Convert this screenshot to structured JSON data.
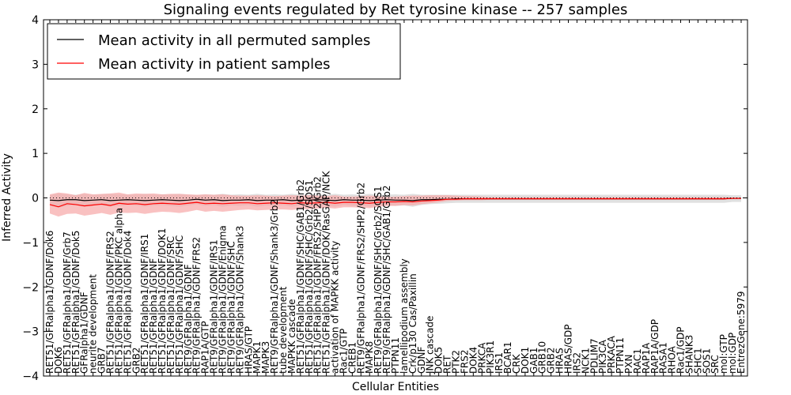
{
  "chart_data": {
    "type": "line",
    "title": "Signaling events regulated by Ret tyrosine kinase -- 257 samples",
    "xlabel": "Cellular Entities",
    "ylabel": "Inferred Activity",
    "ylim": [
      -4,
      4
    ],
    "yticks": [
      "−4",
      "−3",
      "−2",
      "−1",
      "0",
      "1",
      "2",
      "3",
      "4"
    ],
    "grid": false,
    "legend_position": "top-left",
    "categories": [
      "RET51/GFRalpha1/GDNF/Dok6",
      "DOK6",
      "RET51/GFRalpha1/GDNF/Grb7",
      "RET51/GFRalpha1/GDNF/Dok5",
      "GFRalpha1/GDNF",
      "neurite development",
      "GRB7",
      "RET51/GFRalpha1/GDNF/FRS2",
      "RET51/GFRalpha1/GDNF/PKC alpha",
      "RET51/GFRalpha1/GDNF/Dok4",
      "GRB2",
      "RET51/GFRalpha1/GDNF/IRS1",
      "RET51/GFRalpha1/GDNF",
      "RET51/GFRalpha1/GDNF/DOK1",
      "RET51/GFRalpha1/GDNF/SRC",
      "RET51/GFRalpha1/GDNF/SHC",
      "RET9/GFRalpha1/GDNF",
      "RET9/GFRalpha1/GDNF/FRS2",
      "RAP1A/GTP",
      "RET9/GFRalpha1/GDNF/IRS1",
      "RET9/GFRalpha1/GDNF/Enigma",
      "RET9/GFRalpha1/GDNF/SHC",
      "RET9/GFRalpha1/GDNF/Shank3",
      "HRAS/GTP",
      "MAPK1",
      "MAPK3",
      "RET9/GFRalpha1/GDNF/Shank3/Grb2",
      "tube development",
      "MAPKK cascade",
      "RET51/GFRalpha1/GDNF/SHC/GAB1/Grb2",
      "RET51/GFRalpha1/GDNF/SHC/Grb2/SOS1",
      "RET51/GFRalpha1/GDNF/FRS2/SHP2/Grb2",
      "RET51/GFRalpha1/GDNF/DOK/RasGAP/NCK",
      "activation of MAPKK activity",
      "Rac1/GTP",
      "CREB1",
      "RET9/GFRalpha1/GDNF/FRS2/SHP2/Grb2",
      "MAPK8",
      "RET9/GFRalpha1/GDNF/SHC/Grb2/SOS1",
      "RET9/GFRalpha1/GDNF/SHC/GAB1/Grb2",
      "PTPN11",
      "lamellipodium assembly",
      "Crk/p130 Cas/Paxillin",
      "GDNF",
      "JNK cascade",
      "DOK5",
      "RET",
      "PTK2",
      "FRS2",
      "DOK4",
      "PRKCA",
      "PIK3R1",
      "IRS1",
      "BCAR1",
      "CRK",
      "DOK1",
      "GAB1",
      "GRB10",
      "GRB2",
      "HRAS",
      "HRAS/GDP",
      "IRS2",
      "NCK1",
      "PDLIM7",
      "PIK3CA",
      "PRKACA",
      "PTPN11",
      "PXN",
      "RAC1",
      "RAP1A",
      "RAP1A/GDP",
      "RASA1",
      "RHOA",
      "Rac1/GDP",
      "SHANK3",
      "SHC1",
      "SOS1",
      "SRC",
      "mol:GTP",
      "mol:GDP",
      "EntrezGene:5979"
    ],
    "series": [
      {
        "name": "Mean activity in all permuted samples",
        "color": "#000000",
        "band_color": "#cccccc",
        "values": [
          -0.05,
          -0.06,
          -0.04,
          -0.04,
          -0.06,
          -0.05,
          -0.04,
          -0.06,
          -0.05,
          -0.04,
          -0.05,
          -0.06,
          -0.05,
          -0.04,
          -0.05,
          -0.06,
          -0.05,
          -0.03,
          -0.05,
          -0.04,
          -0.06,
          -0.05,
          -0.05,
          -0.04,
          -0.06,
          -0.05,
          -0.05,
          -0.04,
          -0.06,
          -0.05,
          -0.05,
          -0.04,
          -0.05,
          -0.06,
          -0.04,
          -0.05,
          -0.05,
          -0.06,
          -0.05,
          -0.04,
          -0.05,
          -0.05,
          -0.06,
          -0.04,
          -0.04,
          -0.03,
          -0.03,
          -0.02,
          -0.02,
          -0.02,
          -0.02,
          -0.02,
          -0.02,
          -0.02,
          -0.02,
          -0.02,
          -0.02,
          -0.02,
          -0.02,
          -0.02,
          -0.02,
          -0.02,
          -0.02,
          -0.02,
          -0.02,
          -0.02,
          -0.02,
          -0.02,
          -0.02,
          -0.02,
          -0.02,
          -0.02,
          -0.02,
          -0.02,
          -0.02,
          -0.02,
          -0.02,
          -0.02,
          -0.02,
          -0.01,
          -0.01
        ],
        "lower": [
          -0.17,
          -0.22,
          -0.18,
          -0.16,
          -0.2,
          -0.17,
          -0.16,
          -0.2,
          -0.18,
          -0.16,
          -0.17,
          -0.2,
          -0.17,
          -0.16,
          -0.18,
          -0.2,
          -0.17,
          -0.14,
          -0.18,
          -0.16,
          -0.2,
          -0.17,
          -0.18,
          -0.16,
          -0.2,
          -0.17,
          -0.18,
          -0.16,
          -0.2,
          -0.17,
          -0.18,
          -0.16,
          -0.17,
          -0.2,
          -0.16,
          -0.18,
          -0.17,
          -0.2,
          -0.17,
          -0.16,
          -0.18,
          -0.17,
          -0.2,
          -0.16,
          -0.14,
          -0.13,
          -0.12,
          -0.11,
          -0.11,
          -0.11,
          -0.11,
          -0.11,
          -0.11,
          -0.11,
          -0.11,
          -0.11,
          -0.11,
          -0.11,
          -0.11,
          -0.11,
          -0.11,
          -0.11,
          -0.11,
          -0.11,
          -0.11,
          -0.11,
          -0.11,
          -0.11,
          -0.11,
          -0.11,
          -0.11,
          -0.11,
          -0.11,
          -0.11,
          -0.11,
          -0.11,
          -0.11,
          -0.11,
          -0.11,
          -0.09,
          -0.09
        ],
        "upper": [
          0.06,
          0.1,
          0.08,
          0.07,
          0.09,
          0.07,
          0.08,
          0.09,
          0.08,
          0.07,
          0.07,
          0.09,
          0.07,
          0.08,
          0.08,
          0.09,
          0.07,
          0.06,
          0.08,
          0.07,
          0.09,
          0.07,
          0.08,
          0.07,
          0.09,
          0.07,
          0.08,
          0.07,
          0.09,
          0.07,
          0.08,
          0.07,
          0.07,
          0.09,
          0.07,
          0.08,
          0.07,
          0.09,
          0.07,
          0.07,
          0.08,
          0.07,
          0.09,
          0.07,
          0.07,
          0.07,
          0.07,
          0.07,
          0.07,
          0.07,
          0.07,
          0.07,
          0.07,
          0.07,
          0.07,
          0.07,
          0.07,
          0.07,
          0.07,
          0.07,
          0.07,
          0.07,
          0.07,
          0.07,
          0.07,
          0.07,
          0.07,
          0.07,
          0.07,
          0.07,
          0.07,
          0.07,
          0.07,
          0.07,
          0.07,
          0.07,
          0.07,
          0.07,
          0.07,
          0.06,
          0.06
        ]
      },
      {
        "name": "Mean activity in patient samples",
        "color": "#ff0000",
        "band_color": "#f7a6a6",
        "values": [
          -0.15,
          -0.2,
          -0.13,
          -0.15,
          -0.18,
          -0.16,
          -0.14,
          -0.17,
          -0.12,
          -0.14,
          -0.13,
          -0.15,
          -0.13,
          -0.12,
          -0.13,
          -0.14,
          -0.12,
          -0.1,
          -0.13,
          -0.12,
          -0.13,
          -0.12,
          -0.11,
          -0.11,
          -0.13,
          -0.12,
          -0.11,
          -0.12,
          -0.13,
          -0.11,
          -0.12,
          -0.11,
          -0.1,
          -0.12,
          -0.1,
          -0.1,
          -0.11,
          -0.12,
          -0.1,
          -0.09,
          -0.09,
          -0.08,
          -0.09,
          -0.07,
          -0.06,
          -0.05,
          -0.03,
          -0.03,
          -0.02,
          -0.02,
          -0.02,
          -0.02,
          -0.02,
          -0.02,
          -0.02,
          -0.02,
          -0.02,
          -0.02,
          -0.02,
          -0.02,
          -0.02,
          -0.02,
          -0.02,
          -0.02,
          -0.02,
          -0.02,
          -0.02,
          -0.02,
          -0.02,
          -0.02,
          -0.02,
          -0.02,
          -0.02,
          -0.02,
          -0.02,
          -0.02,
          -0.02,
          -0.02,
          -0.02,
          -0.01,
          -0.01
        ],
        "lower": [
          -0.35,
          -0.42,
          -0.36,
          -0.35,
          -0.4,
          -0.37,
          -0.34,
          -0.38,
          -0.33,
          -0.34,
          -0.33,
          -0.36,
          -0.33,
          -0.31,
          -0.32,
          -0.34,
          -0.31,
          -0.27,
          -0.31,
          -0.29,
          -0.31,
          -0.29,
          -0.27,
          -0.26,
          -0.28,
          -0.27,
          -0.26,
          -0.26,
          -0.27,
          -0.25,
          -0.25,
          -0.24,
          -0.22,
          -0.24,
          -0.21,
          -0.21,
          -0.22,
          -0.23,
          -0.2,
          -0.18,
          -0.18,
          -0.16,
          -0.17,
          -0.14,
          -0.12,
          -0.1,
          -0.07,
          -0.06,
          -0.05,
          -0.05,
          -0.05,
          -0.04,
          -0.04,
          -0.04,
          -0.04,
          -0.04,
          -0.04,
          -0.04,
          -0.04,
          -0.04,
          -0.04,
          -0.04,
          -0.04,
          -0.04,
          -0.04,
          -0.04,
          -0.04,
          -0.04,
          -0.04,
          -0.04,
          -0.04,
          -0.04,
          -0.04,
          -0.04,
          -0.04,
          -0.04,
          -0.04,
          -0.04,
          -0.04,
          -0.03,
          -0.03
        ],
        "upper": [
          0.08,
          0.12,
          0.1,
          0.06,
          0.11,
          0.08,
          0.09,
          0.1,
          0.12,
          0.08,
          0.1,
          0.09,
          0.1,
          0.08,
          0.09,
          0.09,
          0.08,
          0.07,
          0.08,
          0.07,
          0.08,
          0.06,
          0.05,
          0.05,
          0.06,
          0.05,
          0.04,
          0.05,
          0.06,
          0.05,
          0.06,
          0.05,
          0.04,
          0.06,
          0.03,
          0.03,
          0.04,
          0.05,
          0.04,
          0.02,
          0.03,
          0.04,
          0.05,
          0.05,
          0.06,
          0.06,
          0.06,
          0.05,
          0.04,
          0.04,
          0.03,
          0.02,
          0.02,
          0.02,
          0.02,
          0.02,
          0.02,
          0.02,
          0.02,
          0.02,
          0.02,
          0.02,
          0.02,
          0.02,
          0.02,
          0.02,
          0.02,
          0.02,
          0.02,
          0.02,
          0.02,
          0.02,
          0.02,
          0.02,
          0.02,
          0.02,
          0.02,
          0.02,
          0.02,
          0.01,
          0.01
        ]
      }
    ],
    "reference_line": {
      "y": 0,
      "style": "dotted",
      "color": "#000000"
    }
  }
}
